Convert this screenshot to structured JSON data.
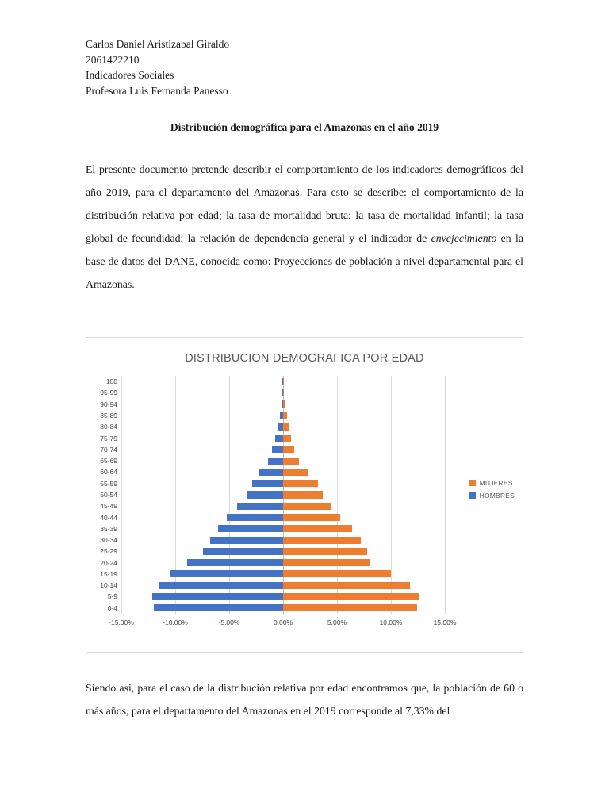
{
  "page": {
    "header_lines": [
      "Carlos Daniel Aristizabal Giraldo",
      "2061422210",
      "Indicadores Sociales",
      "Profesora Luis Fernanda Panesso"
    ],
    "title": "Distribución demográfica para el Amazonas en el año 2019",
    "para1_part1": "El presente documento pretende describir el comportamiento de los indicadores demográficos del año 2019, para el departamento del Amazonas. Para esto se describe: el comportamiento de la distribución relativa por edad; la tasa de mortalidad bruta; la tasa de mortalidad infantil; la tasa global de fecundidad; la relación de dependencia general y el indicador de ",
    "para1_italic": "envejecimiento",
    "para1_part2": " en la base de datos del DANE, conocida como: Proyecciones de población a nivel departamental para el Amazonas.",
    "para2": "Siendo asi, para el caso de la distribución relativa por edad encontramos que, la población de 60 o más años, para el departamento del Amazonas en el 2019 corresponde al 7,33% del"
  },
  "chart_data": {
    "type": "bar",
    "orientation": "horizontal",
    "subtype": "population-pyramid",
    "title": "DISTRIBUCION DEMOGRAFICA POR EDAD",
    "categories": [
      "100",
      "95-99",
      "90-94",
      "85-89",
      "80-84",
      "75-79",
      "70-74",
      "65-69",
      "60-64",
      "55-59",
      "50-54",
      "45-49",
      "40-44",
      "35-39",
      "30-34",
      "25-29",
      "20-24",
      "15-19",
      "10-14",
      "5-9",
      "0-4"
    ],
    "series": [
      {
        "name": "MUJERES",
        "color": "#ED7D31",
        "values": [
          0.05,
          0.1,
          0.2,
          0.35,
          0.5,
          0.75,
          1.0,
          1.5,
          2.3,
          3.2,
          3.7,
          4.5,
          5.3,
          6.4,
          7.2,
          7.8,
          8.0,
          10.0,
          11.8,
          12.6,
          12.4
        ]
      },
      {
        "name": "HOMBRES",
        "color": "#4472C4",
        "values": [
          -0.05,
          -0.1,
          -0.18,
          -0.3,
          -0.45,
          -0.7,
          -1.0,
          -1.4,
          -2.2,
          -2.9,
          -3.4,
          -4.3,
          -5.2,
          -6.0,
          -6.8,
          -7.4,
          -8.9,
          -10.5,
          -11.5,
          -12.1,
          -12.0
        ]
      }
    ],
    "x_ticks": [
      "-15.00%",
      "-10.00%",
      "-5.00%",
      "0.00%",
      "5.00%",
      "10.00%",
      "15.00%"
    ],
    "x_tick_values": [
      -15,
      -10,
      -5,
      0,
      5,
      10,
      15
    ],
    "xlim": [
      -15,
      15
    ],
    "grid": "vertical",
    "legend_position": "right"
  }
}
